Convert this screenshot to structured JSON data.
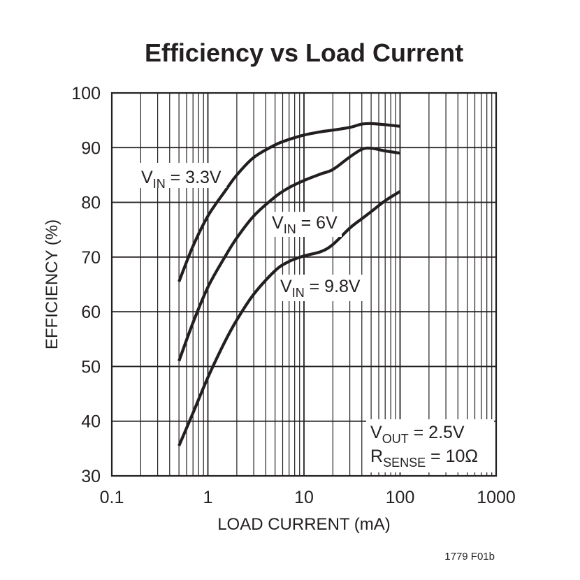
{
  "chart_data": {
    "type": "line",
    "title": "Efficiency vs Load Current",
    "xlabel": "LOAD CURRENT (mA)",
    "ylabel": "EFFICIENCY (%)",
    "xscale": "log",
    "xlim": [
      0.1,
      1000
    ],
    "ylim": [
      30,
      100
    ],
    "x_ticks": [
      0.1,
      1,
      10,
      100,
      1000
    ],
    "x_tick_labels": [
      "0.1",
      "1",
      "10",
      "100",
      "1000"
    ],
    "y_ticks": [
      30,
      40,
      50,
      60,
      70,
      80,
      90,
      100
    ],
    "y_tick_labels": [
      "30",
      "40",
      "50",
      "60",
      "70",
      "80",
      "90",
      "100"
    ],
    "grid": true,
    "series": [
      {
        "name": "VIN = 3.3V",
        "label_main": "V",
        "label_sub": "IN",
        "label_rest": " = 3.3V",
        "x": [
          0.5,
          0.7,
          1,
          1.5,
          2,
          3,
          5,
          7,
          10,
          15,
          20,
          30,
          40,
          50,
          70,
          100
        ],
        "y": [
          65.5,
          72,
          77.5,
          82,
          85,
          88.2,
          90.5,
          91.5,
          92.3,
          92.9,
          93.2,
          93.7,
          94.3,
          94.4,
          94.2,
          93.9
        ]
      },
      {
        "name": "VIN = 6V",
        "label_main": "V",
        "label_sub": "IN",
        "label_rest": " = 6V",
        "x": [
          0.5,
          0.7,
          1,
          1.5,
          2,
          3,
          5,
          7,
          10,
          15,
          20,
          30,
          40,
          50,
          70,
          100
        ],
        "y": [
          51,
          58,
          64.5,
          70,
          73.5,
          77.5,
          81,
          82.7,
          84,
          85.2,
          86,
          88.3,
          89.7,
          89.9,
          89.4,
          89
        ]
      },
      {
        "name": "VIN = 9.8V",
        "label_main": "V",
        "label_sub": "IN",
        "label_rest": " = 9.8V",
        "x": [
          0.5,
          0.7,
          1,
          1.5,
          2,
          3,
          5,
          7,
          10,
          15,
          20,
          30,
          40,
          50,
          70,
          100
        ],
        "y": [
          35.5,
          41.5,
          48,
          54.5,
          58.5,
          63.2,
          67.5,
          69.2,
          70.2,
          71,
          72.3,
          75.3,
          77,
          78.3,
          80.3,
          82
        ]
      }
    ],
    "conditions": {
      "vout_main": "V",
      "vout_sub": "OUT",
      "vout_rest": " = 2.5V",
      "rsense_main": "R",
      "rsense_sub": "SENSE",
      "rsense_rest": " = 10Ω"
    },
    "figure_note": "1779 F01b"
  }
}
